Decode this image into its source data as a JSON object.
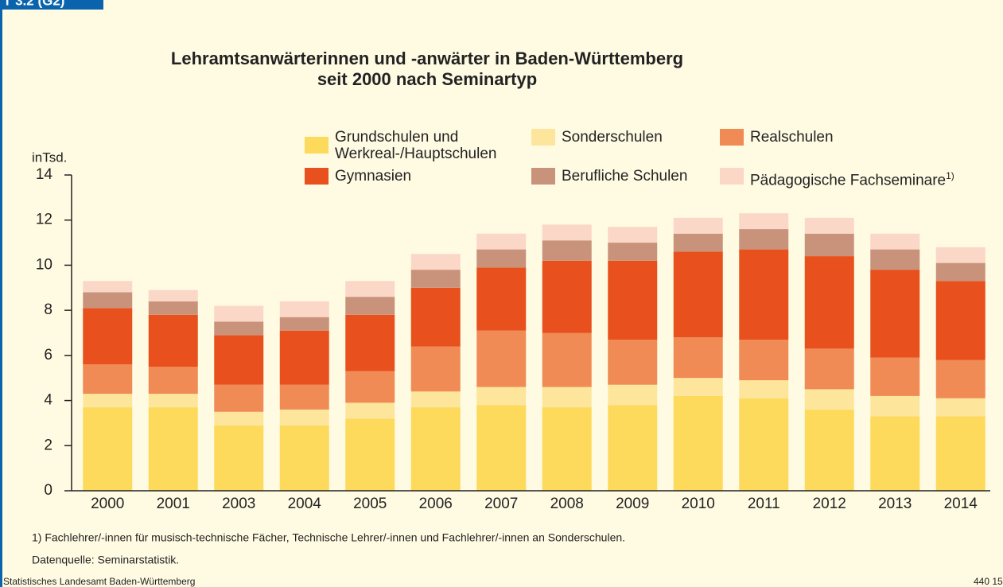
{
  "header_label": "T 3.2 (G2)",
  "chart_data": {
    "type": "stacked_bar",
    "title": [
      "Lehramtsanwärterinnen und -anwärter in Baden-Württemberg",
      "seit 2000 nach Seminartyp"
    ],
    "y_axis_label": "inTsd.",
    "categories": [
      "2000",
      "2001",
      "2003",
      "2004",
      "2005",
      "2006",
      "2007",
      "2008",
      "2009",
      "2010",
      "2011",
      "2012",
      "2013",
      "2014"
    ],
    "series": [
      {
        "name": "Grundschulen und Werkreal-/Hauptschulen",
        "color": "#fdd95c",
        "values": [
          3.7,
          3.7,
          2.9,
          2.9,
          3.2,
          3.7,
          3.8,
          3.7,
          3.8,
          4.2,
          4.1,
          3.6,
          3.3,
          3.3
        ]
      },
      {
        "name": "Sonderschulen",
        "color": "#fde69c",
        "values": [
          0.6,
          0.6,
          0.6,
          0.7,
          0.7,
          0.7,
          0.8,
          0.9,
          0.9,
          0.8,
          0.8,
          0.9,
          0.9,
          0.8
        ]
      },
      {
        "name": "Realschulen",
        "color": "#f08b56",
        "values": [
          1.3,
          1.2,
          1.2,
          1.1,
          1.4,
          2.0,
          2.5,
          2.4,
          2.0,
          1.8,
          1.8,
          1.8,
          1.7,
          1.7
        ]
      },
      {
        "name": "Gymnasien",
        "color": "#e8501d",
        "values": [
          2.5,
          2.3,
          2.2,
          2.4,
          2.5,
          2.6,
          2.8,
          3.2,
          3.5,
          3.8,
          4.0,
          4.1,
          3.9,
          3.5
        ]
      },
      {
        "name": "Berufliche Schulen",
        "color": "#c9937b",
        "values": [
          0.7,
          0.6,
          0.6,
          0.6,
          0.8,
          0.8,
          0.8,
          0.9,
          0.8,
          0.8,
          0.9,
          1.0,
          0.9,
          0.8
        ]
      },
      {
        "name": "Pädagogische Fachseminare",
        "name_note": "1)",
        "color": "#fbd7c7",
        "values": [
          0.5,
          0.5,
          0.7,
          0.7,
          0.7,
          0.7,
          0.7,
          0.7,
          0.7,
          0.7,
          0.7,
          0.7,
          0.7,
          0.7
        ]
      }
    ],
    "ylim": [
      0,
      14
    ],
    "yticks": [
      0,
      2,
      4,
      6,
      8,
      10,
      12,
      14
    ],
    "footnote": "1) Fachlehrer/-innen für musisch-technische Fächer, Technische Lehrer/-innen und Fachlehrer/-innen an Sonderschulen.",
    "source": "Datenquelle: Seminarstatistik."
  },
  "footer": {
    "left": "Statistisches Landesamt Baden-Württemberg",
    "right": "440 15"
  }
}
